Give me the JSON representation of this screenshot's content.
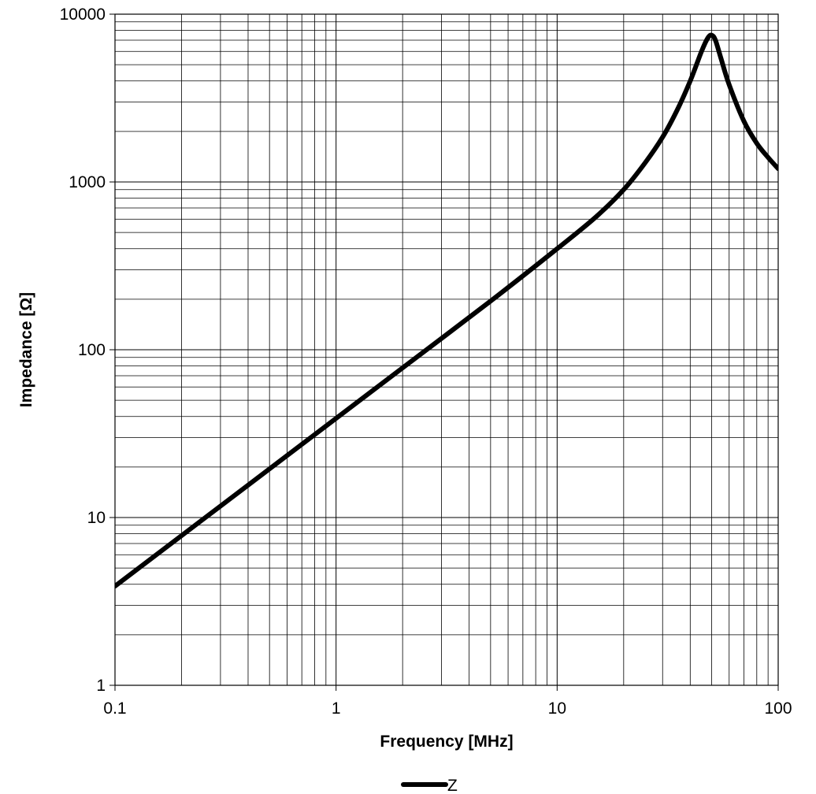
{
  "chart_data": {
    "type": "line",
    "title": "",
    "xlabel": "Frequency [MHz]",
    "ylabel": "Impedance [Ω]",
    "xscale": "log",
    "yscale": "log",
    "xlim": [
      0.1,
      100
    ],
    "ylim": [
      1,
      10000
    ],
    "x_tick_labels": [
      "0.1",
      "1",
      "10",
      "100"
    ],
    "y_tick_labels": [
      "1",
      "10",
      "100",
      "1000",
      "10000"
    ],
    "grid": true,
    "legend_position": "bottom-center",
    "series": [
      {
        "name": "Z",
        "color": "#000000",
        "x": [
          0.1,
          0.2,
          0.5,
          1,
          2,
          5,
          10,
          15,
          20,
          25,
          30,
          35,
          40,
          45,
          48,
          50,
          52,
          55,
          60,
          70,
          80,
          90,
          100
        ],
        "y": [
          3.9,
          7.8,
          19.5,
          39,
          78,
          195,
          400,
          620,
          900,
          1300,
          1850,
          2700,
          4000,
          6000,
          7200,
          7500,
          7000,
          5500,
          3800,
          2300,
          1700,
          1400,
          1200
        ]
      }
    ]
  }
}
